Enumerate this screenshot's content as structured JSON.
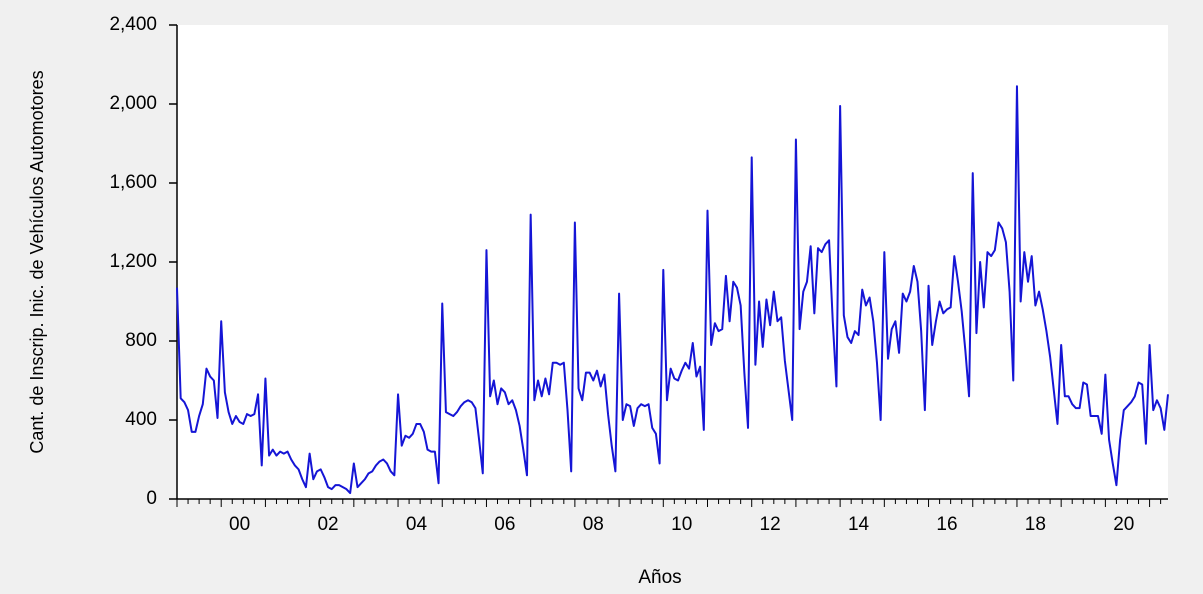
{
  "chart_data": {
    "type": "line",
    "y_label": "Cant. de Inscrip. Inic. de Vehículos Automotores",
    "x_label": "Años",
    "categories": [
      null,
      null,
      null,
      null,
      null,
      null,
      null,
      null,
      null,
      null,
      null,
      null,
      null,
      null,
      null,
      null,
      null,
      "00",
      null,
      null,
      null,
      null,
      null,
      null,
      null,
      null,
      null,
      null,
      null,
      null,
      null,
      null,
      null,
      null,
      null,
      null,
      null,
      null,
      null,
      null,
      null,
      "02",
      null,
      null,
      null,
      null,
      null,
      null,
      null,
      null,
      null,
      null,
      null,
      null,
      null,
      null,
      null,
      null,
      null,
      null,
      null,
      null,
      null,
      null,
      null,
      "04",
      null,
      null,
      null,
      null,
      null,
      null,
      null,
      null,
      null,
      null,
      null,
      null,
      null,
      null,
      null,
      null,
      null,
      null,
      null,
      null,
      null,
      null,
      null,
      "06",
      null,
      null,
      null,
      null,
      null,
      null,
      null,
      null,
      null,
      null,
      null,
      null,
      null,
      null,
      null,
      null,
      null,
      null,
      null,
      null,
      null,
      null,
      null,
      "08",
      null,
      null,
      null,
      null,
      null,
      null,
      null,
      null,
      null,
      null,
      null,
      null,
      null,
      null,
      null,
      null,
      null,
      null,
      null,
      null,
      null,
      null,
      null,
      "10",
      null,
      null,
      null,
      null,
      null,
      null,
      null,
      null,
      null,
      null,
      null,
      null,
      null,
      null,
      null,
      null,
      null,
      null,
      null,
      null,
      null,
      null,
      null,
      "12",
      null,
      null,
      null,
      null,
      null,
      null,
      null,
      null,
      null,
      null,
      null,
      null,
      null,
      null,
      null,
      null,
      null,
      null,
      null,
      null,
      null,
      null,
      null,
      "14",
      null,
      null,
      null,
      null,
      null,
      null,
      null,
      null,
      null,
      null,
      null,
      null,
      null,
      null,
      null,
      null,
      null,
      null,
      null,
      null,
      null,
      null,
      null,
      "16",
      null,
      null,
      null,
      null,
      null,
      null,
      null,
      null,
      null,
      null,
      null,
      null,
      null,
      null,
      null,
      null,
      null,
      null,
      null,
      null,
      null,
      null,
      null,
      "18",
      null,
      null,
      null,
      null,
      null,
      null,
      null,
      null,
      null,
      null,
      null,
      null,
      null,
      null,
      null,
      null,
      null,
      null,
      null,
      null,
      null,
      null,
      null,
      "20",
      null,
      null,
      null,
      null,
      null,
      null,
      null,
      null,
      null,
      null,
      null,
      null
    ],
    "series": [
      {
        "color": "#1515d6",
        "values": [
          1070,
          510,
          490,
          450,
          340,
          340,
          420,
          480,
          660,
          620,
          600,
          410,
          900,
          540,
          440,
          380,
          420,
          390,
          380,
          430,
          420,
          430,
          530,
          170,
          610,
          220,
          250,
          220,
          240,
          230,
          240,
          200,
          170,
          150,
          100,
          60,
          230,
          100,
          140,
          150,
          110,
          60,
          50,
          70,
          70,
          60,
          50,
          30,
          180,
          60,
          80,
          100,
          130,
          140,
          170,
          190,
          200,
          180,
          140,
          120,
          530,
          270,
          320,
          310,
          330,
          380,
          380,
          340,
          250,
          240,
          240,
          80,
          990,
          440,
          430,
          420,
          440,
          470,
          490,
          500,
          490,
          460,
          300,
          130,
          1260,
          520,
          600,
          480,
          560,
          540,
          480,
          500,
          450,
          370,
          250,
          120,
          1440,
          500,
          600,
          520,
          610,
          530,
          690,
          690,
          680,
          690,
          450,
          140,
          1400,
          560,
          500,
          640,
          640,
          600,
          650,
          570,
          630,
          430,
          270,
          140,
          1040,
          400,
          480,
          470,
          370,
          460,
          480,
          470,
          480,
          360,
          330,
          180,
          1160,
          500,
          660,
          610,
          600,
          650,
          690,
          660,
          790,
          620,
          670,
          350,
          1460,
          780,
          890,
          850,
          860,
          1130,
          900,
          1100,
          1070,
          980,
          640,
          360,
          1730,
          680,
          1000,
          770,
          1010,
          880,
          1050,
          900,
          920,
          700,
          550,
          400,
          1820,
          860,
          1050,
          1100,
          1280,
          940,
          1270,
          1250,
          1290,
          1310,
          900,
          570,
          1990,
          930,
          820,
          790,
          850,
          830,
          1060,
          980,
          1020,
          900,
          690,
          400,
          1250,
          710,
          860,
          900,
          740,
          1040,
          1000,
          1050,
          1180,
          1100,
          850,
          450,
          1080,
          780,
          900,
          1000,
          940,
          960,
          970,
          1230,
          1100,
          950,
          750,
          520,
          1650,
          840,
          1200,
          970,
          1250,
          1230,
          1260,
          1400,
          1370,
          1300,
          1050,
          600,
          2090,
          1000,
          1250,
          1100,
          1230,
          980,
          1050,
          960,
          850,
          720,
          550,
          380,
          780,
          520,
          520,
          480,
          460,
          460,
          590,
          580,
          420,
          420,
          420,
          330,
          630,
          300,
          180,
          70,
          300,
          450,
          470,
          490,
          520,
          590,
          580,
          280,
          780,
          450,
          500,
          460,
          350,
          530
        ]
      }
    ],
    "ylim": [
      0,
      2400
    ],
    "yticks": [
      0,
      400,
      800,
      {
        "value": 1200,
        "label": "1,200"
      },
      {
        "value": 1600,
        "label": "1,600"
      },
      {
        "value": 2000,
        "label": "2,000"
      },
      {
        "value": 2400,
        "label": "2,400"
      }
    ],
    "grid": false
  }
}
